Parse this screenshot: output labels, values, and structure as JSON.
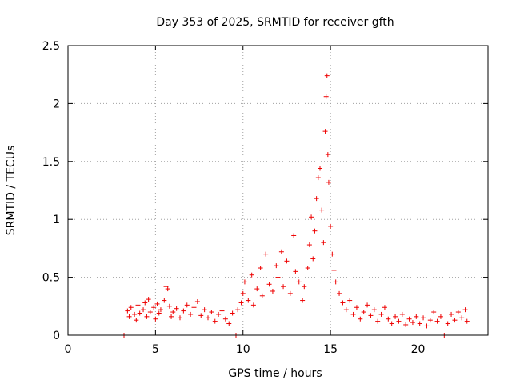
{
  "chart_data": {
    "type": "scatter",
    "title": "Day 353 of 2025, SRMTID for receiver gfth",
    "xlabel": "GPS time / hours",
    "ylabel": "SRMTID / TECUs",
    "xlim": [
      0,
      24
    ],
    "ylim": [
      0,
      2.5
    ],
    "xticks": [
      0,
      5,
      10,
      15,
      20
    ],
    "yticks": [
      0,
      0.5,
      1,
      1.5,
      2,
      2.5
    ],
    "xtick_labels": [
      "0",
      "5",
      "10",
      "15",
      "20"
    ],
    "ytick_labels": [
      "0",
      "0.5",
      "1",
      "1.5",
      "2",
      "2.5"
    ],
    "grid": true,
    "marker": "plus",
    "color": "#ee0000",
    "series": [
      {
        "name": "SRMTID",
        "points": [
          [
            3.2,
            0.0
          ],
          [
            3.4,
            0.21
          ],
          [
            3.5,
            0.16
          ],
          [
            3.6,
            0.24
          ],
          [
            3.8,
            0.18
          ],
          [
            3.9,
            0.13
          ],
          [
            4.0,
            0.26
          ],
          [
            4.1,
            0.19
          ],
          [
            4.3,
            0.22
          ],
          [
            4.4,
            0.28
          ],
          [
            4.5,
            0.16
          ],
          [
            4.6,
            0.31
          ],
          [
            4.7,
            0.2
          ],
          [
            4.9,
            0.24
          ],
          [
            5.0,
            0.14
          ],
          [
            5.1,
            0.27
          ],
          [
            5.2,
            0.19
          ],
          [
            5.3,
            0.22
          ],
          [
            5.5,
            0.3
          ],
          [
            5.6,
            0.42
          ],
          [
            5.7,
            0.4
          ],
          [
            5.8,
            0.25
          ],
          [
            5.9,
            0.16
          ],
          [
            6.0,
            0.2
          ],
          [
            6.2,
            0.23
          ],
          [
            6.4,
            0.15
          ],
          [
            6.6,
            0.21
          ],
          [
            6.8,
            0.26
          ],
          [
            7.0,
            0.18
          ],
          [
            7.2,
            0.24
          ],
          [
            7.4,
            0.29
          ],
          [
            7.6,
            0.17
          ],
          [
            7.8,
            0.22
          ],
          [
            8.0,
            0.15
          ],
          [
            8.2,
            0.2
          ],
          [
            8.4,
            0.12
          ],
          [
            8.6,
            0.18
          ],
          [
            8.8,
            0.21
          ],
          [
            9.0,
            0.14
          ],
          [
            9.2,
            0.1
          ],
          [
            9.4,
            0.19
          ],
          [
            9.6,
            0.0
          ],
          [
            9.7,
            0.22
          ],
          [
            9.9,
            0.28
          ],
          [
            10.0,
            0.36
          ],
          [
            10.1,
            0.46
          ],
          [
            10.3,
            0.3
          ],
          [
            10.5,
            0.52
          ],
          [
            10.6,
            0.26
          ],
          [
            10.8,
            0.4
          ],
          [
            11.0,
            0.58
          ],
          [
            11.1,
            0.34
          ],
          [
            11.3,
            0.7
          ],
          [
            11.5,
            0.44
          ],
          [
            11.7,
            0.38
          ],
          [
            11.9,
            0.6
          ],
          [
            12.0,
            0.5
          ],
          [
            12.2,
            0.72
          ],
          [
            12.3,
            0.42
          ],
          [
            12.5,
            0.64
          ],
          [
            12.7,
            0.36
          ],
          [
            12.9,
            0.86
          ],
          [
            13.0,
            0.55
          ],
          [
            13.2,
            0.46
          ],
          [
            13.4,
            0.3
          ],
          [
            13.5,
            0.42
          ],
          [
            13.7,
            0.58
          ],
          [
            13.8,
            0.78
          ],
          [
            13.9,
            1.02
          ],
          [
            14.0,
            0.66
          ],
          [
            14.1,
            0.9
          ],
          [
            14.2,
            1.18
          ],
          [
            14.3,
            1.36
          ],
          [
            14.4,
            1.44
          ],
          [
            14.5,
            1.08
          ],
          [
            14.6,
            0.8
          ],
          [
            14.7,
            1.76
          ],
          [
            14.75,
            2.06
          ],
          [
            14.8,
            2.24
          ],
          [
            14.85,
            1.56
          ],
          [
            14.9,
            1.32
          ],
          [
            15.0,
            0.94
          ],
          [
            15.1,
            0.7
          ],
          [
            15.2,
            0.56
          ],
          [
            15.3,
            0.46
          ],
          [
            15.5,
            0.36
          ],
          [
            15.7,
            0.28
          ],
          [
            15.9,
            0.22
          ],
          [
            16.1,
            0.3
          ],
          [
            16.3,
            0.18
          ],
          [
            16.5,
            0.24
          ],
          [
            16.7,
            0.14
          ],
          [
            16.9,
            0.2
          ],
          [
            17.1,
            0.26
          ],
          [
            17.3,
            0.17
          ],
          [
            17.5,
            0.22
          ],
          [
            17.7,
            0.12
          ],
          [
            17.9,
            0.18
          ],
          [
            18.1,
            0.24
          ],
          [
            18.3,
            0.14
          ],
          [
            18.5,
            0.1
          ],
          [
            18.7,
            0.16
          ],
          [
            18.9,
            0.12
          ],
          [
            19.1,
            0.18
          ],
          [
            19.3,
            0.09
          ],
          [
            19.5,
            0.14
          ],
          [
            19.7,
            0.11
          ],
          [
            19.9,
            0.16
          ],
          [
            20.1,
            0.1
          ],
          [
            20.3,
            0.15
          ],
          [
            20.5,
            0.08
          ],
          [
            20.7,
            0.13
          ],
          [
            20.9,
            0.2
          ],
          [
            21.1,
            0.12
          ],
          [
            21.3,
            0.16
          ],
          [
            21.5,
            0.0
          ],
          [
            21.7,
            0.1
          ],
          [
            21.9,
            0.18
          ],
          [
            22.1,
            0.13
          ],
          [
            22.3,
            0.2
          ],
          [
            22.5,
            0.15
          ],
          [
            22.7,
            0.22
          ],
          [
            22.8,
            0.12
          ]
        ]
      }
    ]
  }
}
